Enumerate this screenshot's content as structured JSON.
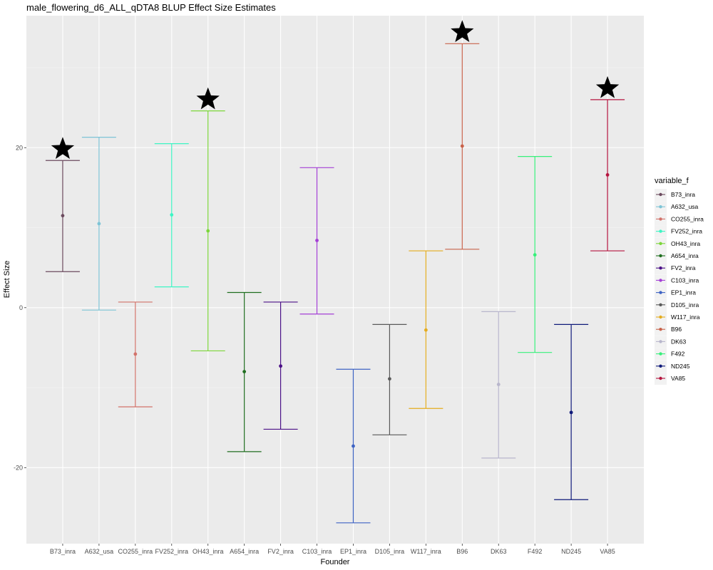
{
  "chart_data": {
    "type": "errorbar",
    "title": "male_flowering_d6_ALL_qDTA8 BLUP Effect Size Estimates",
    "xlabel": "Founder",
    "ylabel": "Effect Size",
    "ylim": [
      -29.5,
      36.5
    ],
    "yticks": [
      -20,
      0,
      20
    ],
    "grid": true,
    "legend": {
      "title": "variable_f",
      "position": "right"
    },
    "series": [
      {
        "name": "B73_inra",
        "color": "#6b4a5e",
        "estimate": 11.5,
        "lower": 4.5,
        "upper": 18.4,
        "significant": true
      },
      {
        "name": "A632_usa",
        "color": "#7ec4d6",
        "estimate": 10.5,
        "lower": -0.3,
        "upper": 21.3,
        "significant": false
      },
      {
        "name": "CO255_inra",
        "color": "#d2726a",
        "estimate": -5.8,
        "lower": -12.4,
        "upper": 0.7,
        "significant": false
      },
      {
        "name": "FV252_inra",
        "color": "#3df5c4",
        "estimate": 11.6,
        "lower": 2.6,
        "upper": 20.5,
        "significant": false
      },
      {
        "name": "OH43_inra",
        "color": "#7cd63a",
        "estimate": 9.6,
        "lower": -5.4,
        "upper": 24.6,
        "significant": true
      },
      {
        "name": "A654_inra",
        "color": "#1f6e1f",
        "estimate": -8.0,
        "lower": -18.0,
        "upper": 1.9,
        "significant": false
      },
      {
        "name": "FV2_inra",
        "color": "#4b1087",
        "estimate": -7.3,
        "lower": -15.2,
        "upper": 0.7,
        "significant": false
      },
      {
        "name": "C103_inra",
        "color": "#a43fd6",
        "estimate": 8.4,
        "lower": -0.8,
        "upper": 17.5,
        "significant": false
      },
      {
        "name": "EP1_inra",
        "color": "#3e63c4",
        "estimate": -17.3,
        "lower": -26.9,
        "upper": -7.7,
        "significant": false
      },
      {
        "name": "D105_inra",
        "color": "#595959",
        "estimate": -8.9,
        "lower": -15.9,
        "upper": -2.1,
        "significant": false
      },
      {
        "name": "W117_inra",
        "color": "#e4ac1f",
        "estimate": -2.8,
        "lower": -12.6,
        "upper": 7.1,
        "significant": false
      },
      {
        "name": "B96",
        "color": "#c8624a",
        "estimate": 20.2,
        "lower": 7.3,
        "upper": 33.0,
        "significant": true
      },
      {
        "name": "DK63",
        "color": "#b8b6cc",
        "estimate": -9.6,
        "lower": -18.8,
        "upper": -0.5,
        "significant": false
      },
      {
        "name": "F492",
        "color": "#36f07a",
        "estimate": 6.6,
        "lower": -5.6,
        "upper": 18.9,
        "significant": false
      },
      {
        "name": "ND245",
        "color": "#0f1a7a",
        "estimate": -13.1,
        "lower": -24.0,
        "upper": -2.1,
        "significant": false
      },
      {
        "name": "VA85",
        "color": "#b5153f",
        "estimate": 16.6,
        "lower": 7.1,
        "upper": 26.0,
        "significant": true
      }
    ]
  }
}
